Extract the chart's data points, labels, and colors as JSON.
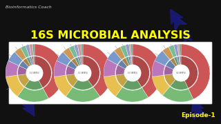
{
  "background_color": "#111111",
  "title_text": "16S MICROBIAL ANALYSIS",
  "title_color": "#ffff00",
  "title_fontsize": 11.5,
  "title_fontweight": "bold",
  "watermark_text": "Bioinformatics Coach",
  "watermark_color": "#cccccc",
  "watermark_fontsize": 4.5,
  "episode_text": "Episode-1",
  "episode_color": "#ffff00",
  "episode_fontsize": 6.5,
  "episode_fontweight": "bold",
  "panel_bg": "#ffffff",
  "donut_labels": [
    "S1 SAMPLE",
    "S2 SAMPLE",
    "S3 SAMPLE",
    "S4 SAMPLE"
  ],
  "donut_slices": [
    [
      0.42,
      0.18,
      0.13,
      0.09,
      0.06,
      0.04,
      0.03,
      0.02,
      0.02,
      0.01
    ],
    [
      0.4,
      0.2,
      0.13,
      0.09,
      0.06,
      0.04,
      0.03,
      0.02,
      0.02,
      0.01
    ],
    [
      0.41,
      0.19,
      0.13,
      0.1,
      0.06,
      0.04,
      0.03,
      0.02,
      0.01,
      0.01
    ],
    [
      0.43,
      0.18,
      0.12,
      0.09,
      0.07,
      0.04,
      0.03,
      0.02,
      0.01,
      0.01
    ]
  ],
  "slice_colors": [
    "#d45050",
    "#78b878",
    "#e8bc58",
    "#c890c0",
    "#7098c8",
    "#d09060",
    "#88cc88",
    "#9898d0",
    "#d89898",
    "#50a890",
    "#e06060",
    "#5a5aaa",
    "#f0d070",
    "#9090d8",
    "#88ccaa",
    "#d0a870",
    "#60b060",
    "#aa88aa",
    "#e8a888",
    "#70c0a0"
  ],
  "dna_color": "#1a1a80",
  "line_color": "#888888",
  "tick_color": "#555555"
}
